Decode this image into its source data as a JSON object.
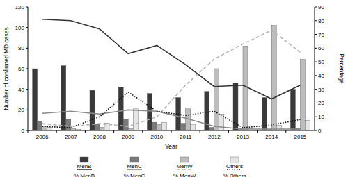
{
  "chart_data": {
    "type": "bar",
    "x_label": "Year",
    "y_label": "Number of confirmed MD cases",
    "y2_label": "Percentage",
    "categories": [
      "2006",
      "2007",
      "2008",
      "2009",
      "2010",
      "2011",
      "2012",
      "2013",
      "2014",
      "2015"
    ],
    "ylim": [
      0,
      120
    ],
    "yticks": [
      0,
      20,
      40,
      60,
      80,
      100,
      120
    ],
    "y2lim": [
      0,
      90
    ],
    "y2ticks": [
      0,
      10,
      20,
      30,
      40,
      50,
      60,
      70,
      80,
      90
    ],
    "grid": false,
    "legend": "bottom",
    "series": [
      {
        "name": "MenB",
        "type": "bar",
        "color": "#3a3a3a",
        "values": [
          60,
          63,
          39,
          42,
          36,
          32,
          38,
          46,
          32,
          40
        ]
      },
      {
        "name": "MenC",
        "type": "bar",
        "color": "#7a7a7a",
        "values": [
          9,
          11,
          6,
          11,
          8,
          7,
          3,
          1,
          1,
          2
        ]
      },
      {
        "name": "MenW",
        "type": "bar",
        "color": "#bdbdbd",
        "values": [
          4,
          2,
          3,
          2,
          6,
          22,
          60,
          82,
          102,
          69
        ]
      },
      {
        "name": "Others",
        "type": "bar",
        "color": "#e6e6e6",
        "values": [
          3,
          1,
          7,
          21,
          8,
          6,
          16,
          2,
          5,
          10
        ]
      },
      {
        "name": "% MenB",
        "type": "line",
        "axis": "y2",
        "color": "#333333",
        "line_style": "solid",
        "values": [
          81,
          80,
          74,
          56,
          62,
          48,
          32,
          33,
          23,
          33
        ]
      },
      {
        "name": "% MenC",
        "type": "line",
        "axis": "y2",
        "color": "#8a8a8a",
        "line_style": "solid",
        "values": [
          12.5,
          14,
          12,
          15,
          14,
          9,
          3,
          1,
          1,
          1
        ]
      },
      {
        "name": "% MenW",
        "type": "line",
        "axis": "y2",
        "color": "#b5b5b5",
        "line_style": "dashed",
        "values": [
          5,
          3,
          5,
          3,
          10,
          33,
          52,
          63,
          73,
          57
        ]
      },
      {
        "name": "% Others",
        "type": "line",
        "axis": "y2",
        "color": "#111111",
        "line_style": "dotted",
        "values": [
          3,
          2,
          10,
          28,
          14,
          11,
          14,
          2,
          4,
          8
        ]
      }
    ]
  }
}
